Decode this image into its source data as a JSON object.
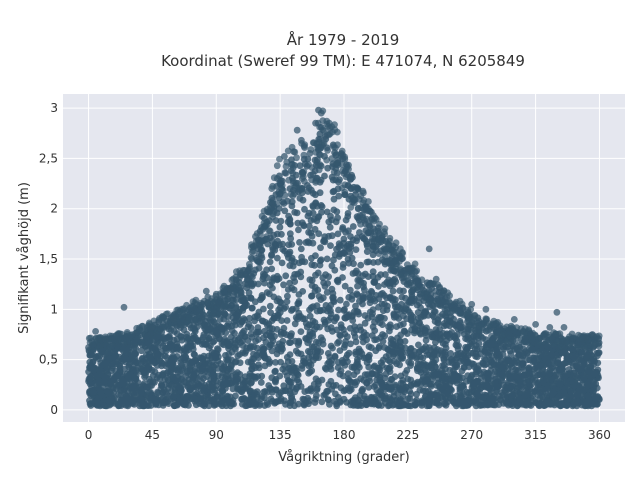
{
  "chart_data": {
    "type": "scatter",
    "title_line1": "År 1979 - 2019",
    "title_line2": "Koordinat (Sweref 99 TM): E 471074, N 6205849",
    "xlabel": "Vågriktning (grader)",
    "ylabel": "Signifikant våghöjd (m)",
    "xlim": [
      -18,
      378
    ],
    "ylim": [
      -0.12,
      3.14
    ],
    "xticks": [
      0,
      45,
      90,
      135,
      180,
      225,
      270,
      315,
      360
    ],
    "xtick_labels": [
      "0",
      "45",
      "90",
      "135",
      "180",
      "225",
      "270",
      "315",
      "360"
    ],
    "yticks": [
      0,
      0.5,
      1,
      1.5,
      2,
      2.5,
      3
    ],
    "ytick_labels": [
      "0",
      "0,5",
      "1",
      "1,5",
      "2",
      "2,5",
      "3"
    ],
    "grid": true,
    "marker_color": "#35576e",
    "background_color": "#e5e7ef",
    "envelope": {
      "x": [
        0,
        20,
        45,
        70,
        90,
        110,
        125,
        135,
        145,
        160,
        165,
        180,
        200,
        225,
        250,
        270,
        290,
        315,
        340,
        360
      ],
      "upper": [
        0.68,
        0.72,
        0.85,
        1.02,
        1.1,
        1.4,
        1.95,
        2.45,
        2.5,
        2.6,
        2.95,
        2.5,
        1.9,
        1.45,
        1.15,
        0.95,
        0.82,
        0.75,
        0.72,
        0.72
      ],
      "lower": [
        0.05,
        0.05,
        0.05,
        0.05,
        0.05,
        0.05,
        0.05,
        0.05,
        0.05,
        0.05,
        0.05,
        0.05,
        0.05,
        0.05,
        0.05,
        0.05,
        0.05,
        0.05,
        0.05,
        0.05
      ]
    },
    "points": [
      {
        "x": 0,
        "y": 0.62
      },
      {
        "x": 5,
        "y": 0.78
      },
      {
        "x": 12,
        "y": 0.7
      },
      {
        "x": 25,
        "y": 1.02
      },
      {
        "x": 45,
        "y": 0.82
      },
      {
        "x": 60,
        "y": 0.9
      },
      {
        "x": 83,
        "y": 1.18
      },
      {
        "x": 84,
        "y": 1.12
      },
      {
        "x": 90,
        "y": 1.15
      },
      {
        "x": 100,
        "y": 1.2
      },
      {
        "x": 120,
        "y": 1.55
      },
      {
        "x": 130,
        "y": 2.05
      },
      {
        "x": 133,
        "y": 2.3
      },
      {
        "x": 138,
        "y": 2.52
      },
      {
        "x": 147,
        "y": 2.78
      },
      {
        "x": 150,
        "y": 2.68
      },
      {
        "x": 156,
        "y": 2.55
      },
      {
        "x": 160,
        "y": 2.85
      },
      {
        "x": 162,
        "y": 2.98
      },
      {
        "x": 164,
        "y": 2.95
      },
      {
        "x": 170,
        "y": 2.8
      },
      {
        "x": 175,
        "y": 2.45
      },
      {
        "x": 180,
        "y": 2.35
      },
      {
        "x": 185,
        "y": 2.2
      },
      {
        "x": 190,
        "y": 2.0
      },
      {
        "x": 195,
        "y": 1.85
      },
      {
        "x": 200,
        "y": 1.7
      },
      {
        "x": 210,
        "y": 1.6
      },
      {
        "x": 215,
        "y": 1.55
      },
      {
        "x": 225,
        "y": 1.4
      },
      {
        "x": 240,
        "y": 1.6
      },
      {
        "x": 245,
        "y": 1.3
      },
      {
        "x": 270,
        "y": 1.05
      },
      {
        "x": 280,
        "y": 1.0
      },
      {
        "x": 300,
        "y": 0.9
      },
      {
        "x": 315,
        "y": 0.85
      },
      {
        "x": 325,
        "y": 0.82
      },
      {
        "x": 330,
        "y": 0.97
      },
      {
        "x": 335,
        "y": 0.82
      },
      {
        "x": 355,
        "y": 0.75
      }
    ]
  }
}
